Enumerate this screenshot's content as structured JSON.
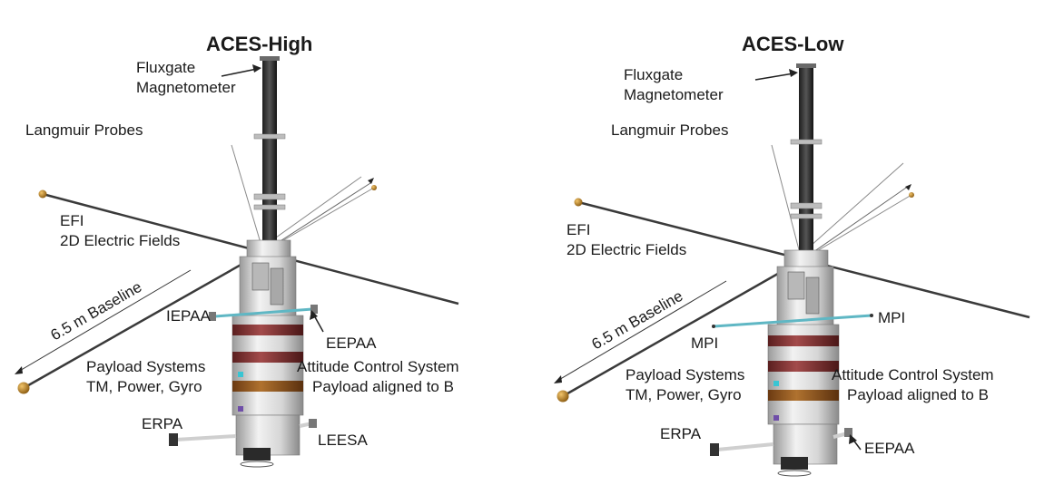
{
  "panels": [
    {
      "title": "ACES-High",
      "labels": {
        "magnetometer_line1": "Fluxgate",
        "magnetometer_line2": "Magnetometer",
        "langmuir": "Langmuir Probes",
        "efi_line1": "EFI",
        "efi_line2": "2D Electric Fields",
        "baseline": "6.5 m Baseline",
        "upper_left_instrument": "IEPAA",
        "upper_right_instrument": "EEPAA",
        "payload_line1": "Payload Systems",
        "payload_line2": "TM, Power, Gyro",
        "acs_line1": "Attitude Control System",
        "acs_line2": "Payload aligned to B",
        "erpa": "ERPA",
        "lower_right_instrument": "LEESA"
      }
    },
    {
      "title": "ACES-Low",
      "labels": {
        "magnetometer_line1": "Fluxgate",
        "magnetometer_line2": "Magnetometer",
        "langmuir": "Langmuir Probes",
        "efi_line1": "EFI",
        "efi_line2": "2D Electric Fields",
        "baseline": "6.5 m Baseline",
        "upper_left_instrument": "MPI",
        "upper_right_instrument": "MPI",
        "payload_line1": "Payload Systems",
        "payload_line2": "TM, Power, Gyro",
        "acs_line1": "Attitude Control System",
        "acs_line2": "Payload aligned to B",
        "erpa": "ERPA",
        "lower_right_instrument": "EEPAA"
      }
    }
  ]
}
